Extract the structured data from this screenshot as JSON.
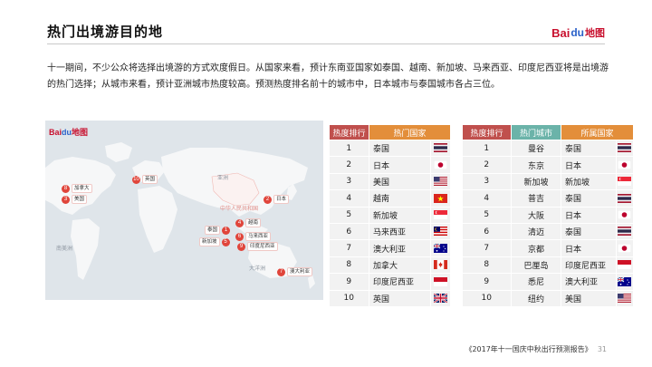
{
  "title": "热门出境游目的地",
  "brand": {
    "text": "Bai",
    "paw": "du",
    "map": "地图"
  },
  "intro": "十一期间，不少公众将选择出境游的方式欢度假日。从国家来看，预计东南亚国家如泰国、越南、新加坡、马来西亚、印度尼西亚将是出境游的热门选择；从城市来看，预计亚洲城市热度较高。预测热度排名前十的城市中，日本城市与泰国城市各占三位。",
  "map": {
    "logo": {
      "text": "Bai",
      "paw": "du",
      "map": "地图"
    },
    "labels": [
      "亚洲",
      "南美洲",
      "大洋洲",
      "中华人民共和国"
    ],
    "pins": [
      {
        "rank": "1",
        "name": "泰国"
      },
      {
        "rank": "2",
        "name": "日本"
      },
      {
        "rank": "3",
        "name": "美国"
      },
      {
        "rank": "4",
        "name": "越南"
      },
      {
        "rank": "5",
        "name": "新加坡"
      },
      {
        "rank": "6",
        "name": "马来西亚"
      },
      {
        "rank": "7",
        "name": "澳大利亚"
      },
      {
        "rank": "8",
        "name": "加拿大"
      },
      {
        "rank": "9",
        "name": "印度尼西亚"
      },
      {
        "rank": "10",
        "name": "英国"
      }
    ]
  },
  "country_table": {
    "headers": [
      "热度排行",
      "热门国家"
    ],
    "rows": [
      {
        "rank": "1",
        "country": "泰国",
        "flag": "thailand-flag-icon"
      },
      {
        "rank": "2",
        "country": "日本",
        "flag": "japan-flag-icon"
      },
      {
        "rank": "3",
        "country": "美国",
        "flag": "usa-flag-icon"
      },
      {
        "rank": "4",
        "country": "越南",
        "flag": "vietnam-flag-icon"
      },
      {
        "rank": "5",
        "country": "新加坡",
        "flag": "singapore-flag-icon"
      },
      {
        "rank": "6",
        "country": "马来西亚",
        "flag": "malaysia-flag-icon"
      },
      {
        "rank": "7",
        "country": "澳大利亚",
        "flag": "australia-flag-icon"
      },
      {
        "rank": "8",
        "country": "加拿大",
        "flag": "canada-flag-icon"
      },
      {
        "rank": "9",
        "country": "印度尼西亚",
        "flag": "indonesia-flag-icon"
      },
      {
        "rank": "10",
        "country": "英国",
        "flag": "uk-flag-icon"
      }
    ]
  },
  "city_table": {
    "headers": [
      "热度排行",
      "热门城市",
      "所属国家"
    ],
    "rows": [
      {
        "rank": "1",
        "city": "曼谷",
        "country": "泰国",
        "flag": "thailand-flag-icon"
      },
      {
        "rank": "2",
        "city": "东京",
        "country": "日本",
        "flag": "japan-flag-icon"
      },
      {
        "rank": "3",
        "city": "新加坡",
        "country": "新加坡",
        "flag": "singapore-flag-icon"
      },
      {
        "rank": "4",
        "city": "普吉",
        "country": "泰国",
        "flag": "thailand-flag-icon"
      },
      {
        "rank": "5",
        "city": "大阪",
        "country": "日本",
        "flag": "japan-flag-icon"
      },
      {
        "rank": "6",
        "city": "清迈",
        "country": "泰国",
        "flag": "thailand-flag-icon"
      },
      {
        "rank": "7",
        "city": "京都",
        "country": "日本",
        "flag": "japan-flag-icon"
      },
      {
        "rank": "8",
        "city": "巴厘岛",
        "country": "印度尼西亚",
        "flag": "indonesia-flag-icon"
      },
      {
        "rank": "9",
        "city": "悉尼",
        "country": "澳大利亚",
        "flag": "australia-flag-icon"
      },
      {
        "rank": "10",
        "city": "纽约",
        "country": "美国",
        "flag": "usa-flag-icon"
      }
    ]
  },
  "footer": {
    "report": "《2017年十一国庆中秋出行预测报告》",
    "page": "31"
  },
  "colors": {
    "rank_header": "#c0504d",
    "orange_header": "#e38e3a",
    "teal_header": "#6bb3a9",
    "pin": "#e0453b",
    "brand_red": "#c8102e",
    "brand_blue": "#2b62c9"
  }
}
